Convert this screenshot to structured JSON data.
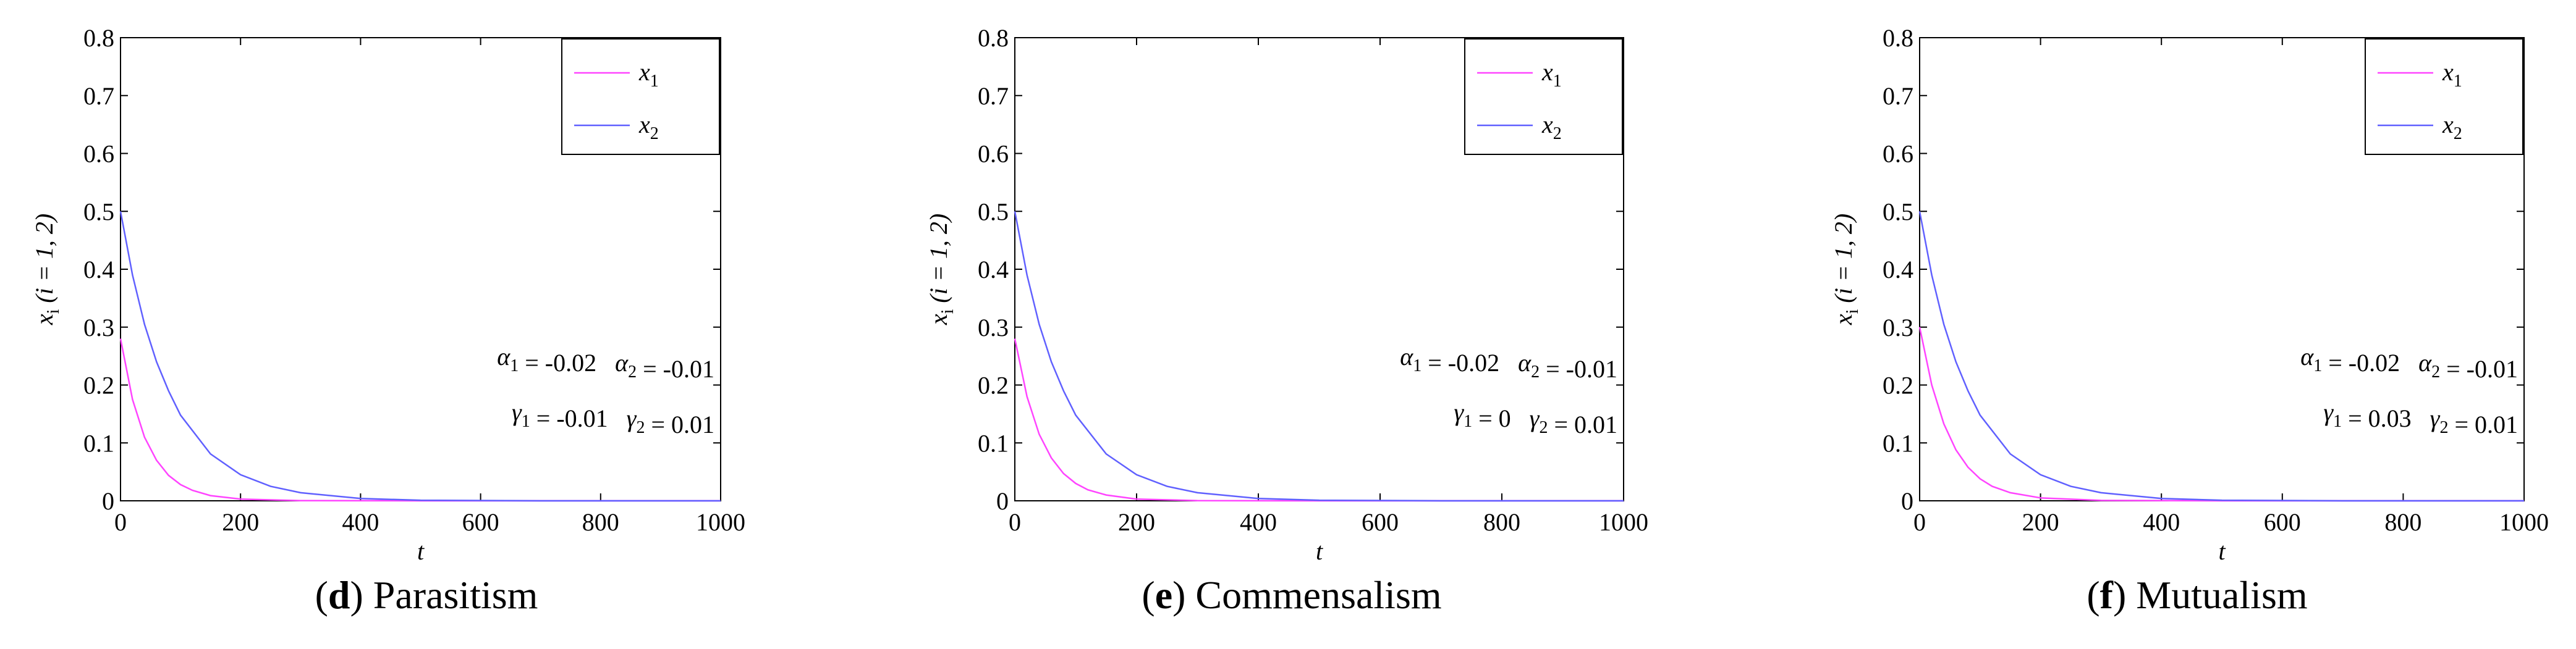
{
  "chart_data": [
    {
      "type": "line",
      "caption_letter": "d",
      "caption_text": " Parasitism",
      "xlabel": "t",
      "ylabel": {
        "main": "x",
        "sub": "i",
        "rest": " (i = 1, 2)"
      },
      "xlim": [
        0,
        1000
      ],
      "ylim": [
        0,
        0.8
      ],
      "xticks": [
        "0",
        "200",
        "400",
        "600",
        "800",
        "1000"
      ],
      "yticks": [
        "0",
        "0.1",
        "0.2",
        "0.3",
        "0.4",
        "0.5",
        "0.6",
        "0.7",
        "0.8"
      ],
      "legend_position": "top-right",
      "series": [
        {
          "name": "x1",
          "label_main": "x",
          "label_sub": "1",
          "color": "#ff44ff",
          "x": [
            0,
            20,
            40,
            60,
            80,
            100,
            120,
            150,
            200,
            300,
            500,
            1000
          ],
          "y": [
            0.28,
            0.175,
            0.11,
            0.07,
            0.044,
            0.028,
            0.018,
            0.009,
            0.003,
            0.0003,
            0,
            0
          ]
        },
        {
          "name": "x2",
          "label_main": "x",
          "label_sub": "2",
          "color": "#6060ff",
          "x": [
            0,
            20,
            40,
            60,
            80,
            100,
            150,
            200,
            250,
            300,
            400,
            500,
            700,
            1000
          ],
          "y": [
            0.5,
            0.39,
            0.305,
            0.24,
            0.19,
            0.148,
            0.081,
            0.045,
            0.025,
            0.014,
            0.004,
            0.001,
            0,
            0
          ]
        }
      ],
      "annotations": [
        {
          "parts": [
            [
              "α",
              "1"
            ],
            [
              " = -0.02   "
            ],
            [
              "α",
              "2"
            ],
            [
              " = -0.01"
            ]
          ]
        },
        {
          "parts": [
            [
              "γ",
              "1"
            ],
            [
              " = -0.01   "
            ],
            [
              "γ",
              "2"
            ],
            [
              " = 0.01"
            ]
          ]
        }
      ]
    },
    {
      "type": "line",
      "caption_letter": "e",
      "caption_text": " Commensalism",
      "xlabel": "t",
      "ylabel": {
        "main": "x",
        "sub": "i",
        "rest": " (i = 1, 2)"
      },
      "xlim": [
        0,
        1000
      ],
      "ylim": [
        0,
        0.8
      ],
      "xticks": [
        "0",
        "200",
        "400",
        "600",
        "800",
        "1000"
      ],
      "yticks": [
        "0",
        "0.1",
        "0.2",
        "0.3",
        "0.4",
        "0.5",
        "0.6",
        "0.7",
        "0.8"
      ],
      "legend_position": "top-right",
      "series": [
        {
          "name": "x1",
          "label_main": "x",
          "label_sub": "1",
          "color": "#ff44ff",
          "x": [
            0,
            20,
            40,
            60,
            80,
            100,
            120,
            150,
            200,
            300,
            500,
            1000
          ],
          "y": [
            0.28,
            0.18,
            0.115,
            0.074,
            0.047,
            0.03,
            0.019,
            0.01,
            0.003,
            0.0003,
            0,
            0
          ]
        },
        {
          "name": "x2",
          "label_main": "x",
          "label_sub": "2",
          "color": "#6060ff",
          "x": [
            0,
            20,
            40,
            60,
            80,
            100,
            150,
            200,
            250,
            300,
            400,
            500,
            700,
            1000
          ],
          "y": [
            0.5,
            0.39,
            0.305,
            0.24,
            0.19,
            0.148,
            0.081,
            0.045,
            0.025,
            0.014,
            0.004,
            0.001,
            0,
            0
          ]
        }
      ],
      "annotations": [
        {
          "parts": [
            [
              "α",
              "1"
            ],
            [
              " = -0.02   "
            ],
            [
              "α",
              "2"
            ],
            [
              " = -0.01"
            ]
          ]
        },
        {
          "parts": [
            [
              "γ",
              "1"
            ],
            [
              " = 0   "
            ],
            [
              "γ",
              "2"
            ],
            [
              " = 0.01"
            ]
          ]
        }
      ]
    },
    {
      "type": "line",
      "caption_letter": "f",
      "caption_text": " Mutualism",
      "xlabel": "t",
      "ylabel": {
        "main": "x",
        "sub": "i",
        "rest": " (i = 1, 2)"
      },
      "xlim": [
        0,
        1000
      ],
      "ylim": [
        0,
        0.8
      ],
      "xticks": [
        "0",
        "200",
        "400",
        "600",
        "800",
        "1000"
      ],
      "yticks": [
        "0",
        "0.1",
        "0.2",
        "0.3",
        "0.4",
        "0.5",
        "0.6",
        "0.7",
        "0.8"
      ],
      "legend_position": "top-right",
      "series": [
        {
          "name": "x1",
          "label_main": "x",
          "label_sub": "1",
          "color": "#ff44ff",
          "x": [
            0,
            20,
            40,
            60,
            80,
            100,
            120,
            150,
            200,
            300,
            500,
            1000
          ],
          "y": [
            0.3,
            0.2,
            0.133,
            0.088,
            0.058,
            0.038,
            0.025,
            0.014,
            0.005,
            0.0006,
            0,
            0
          ]
        },
        {
          "name": "x2",
          "label_main": "x",
          "label_sub": "2",
          "color": "#6060ff",
          "x": [
            0,
            20,
            40,
            60,
            80,
            100,
            150,
            200,
            250,
            300,
            400,
            500,
            700,
            1000
          ],
          "y": [
            0.5,
            0.39,
            0.305,
            0.24,
            0.19,
            0.148,
            0.081,
            0.045,
            0.025,
            0.014,
            0.004,
            0.001,
            0,
            0
          ]
        }
      ],
      "annotations": [
        {
          "parts": [
            [
              "α",
              "1"
            ],
            [
              " = -0.02   "
            ],
            [
              "α",
              "2"
            ],
            [
              " = -0.01"
            ]
          ]
        },
        {
          "parts": [
            [
              "γ",
              "1"
            ],
            [
              " = 0.03   "
            ],
            [
              "γ",
              "2"
            ],
            [
              " = 0.01"
            ]
          ]
        }
      ]
    }
  ]
}
